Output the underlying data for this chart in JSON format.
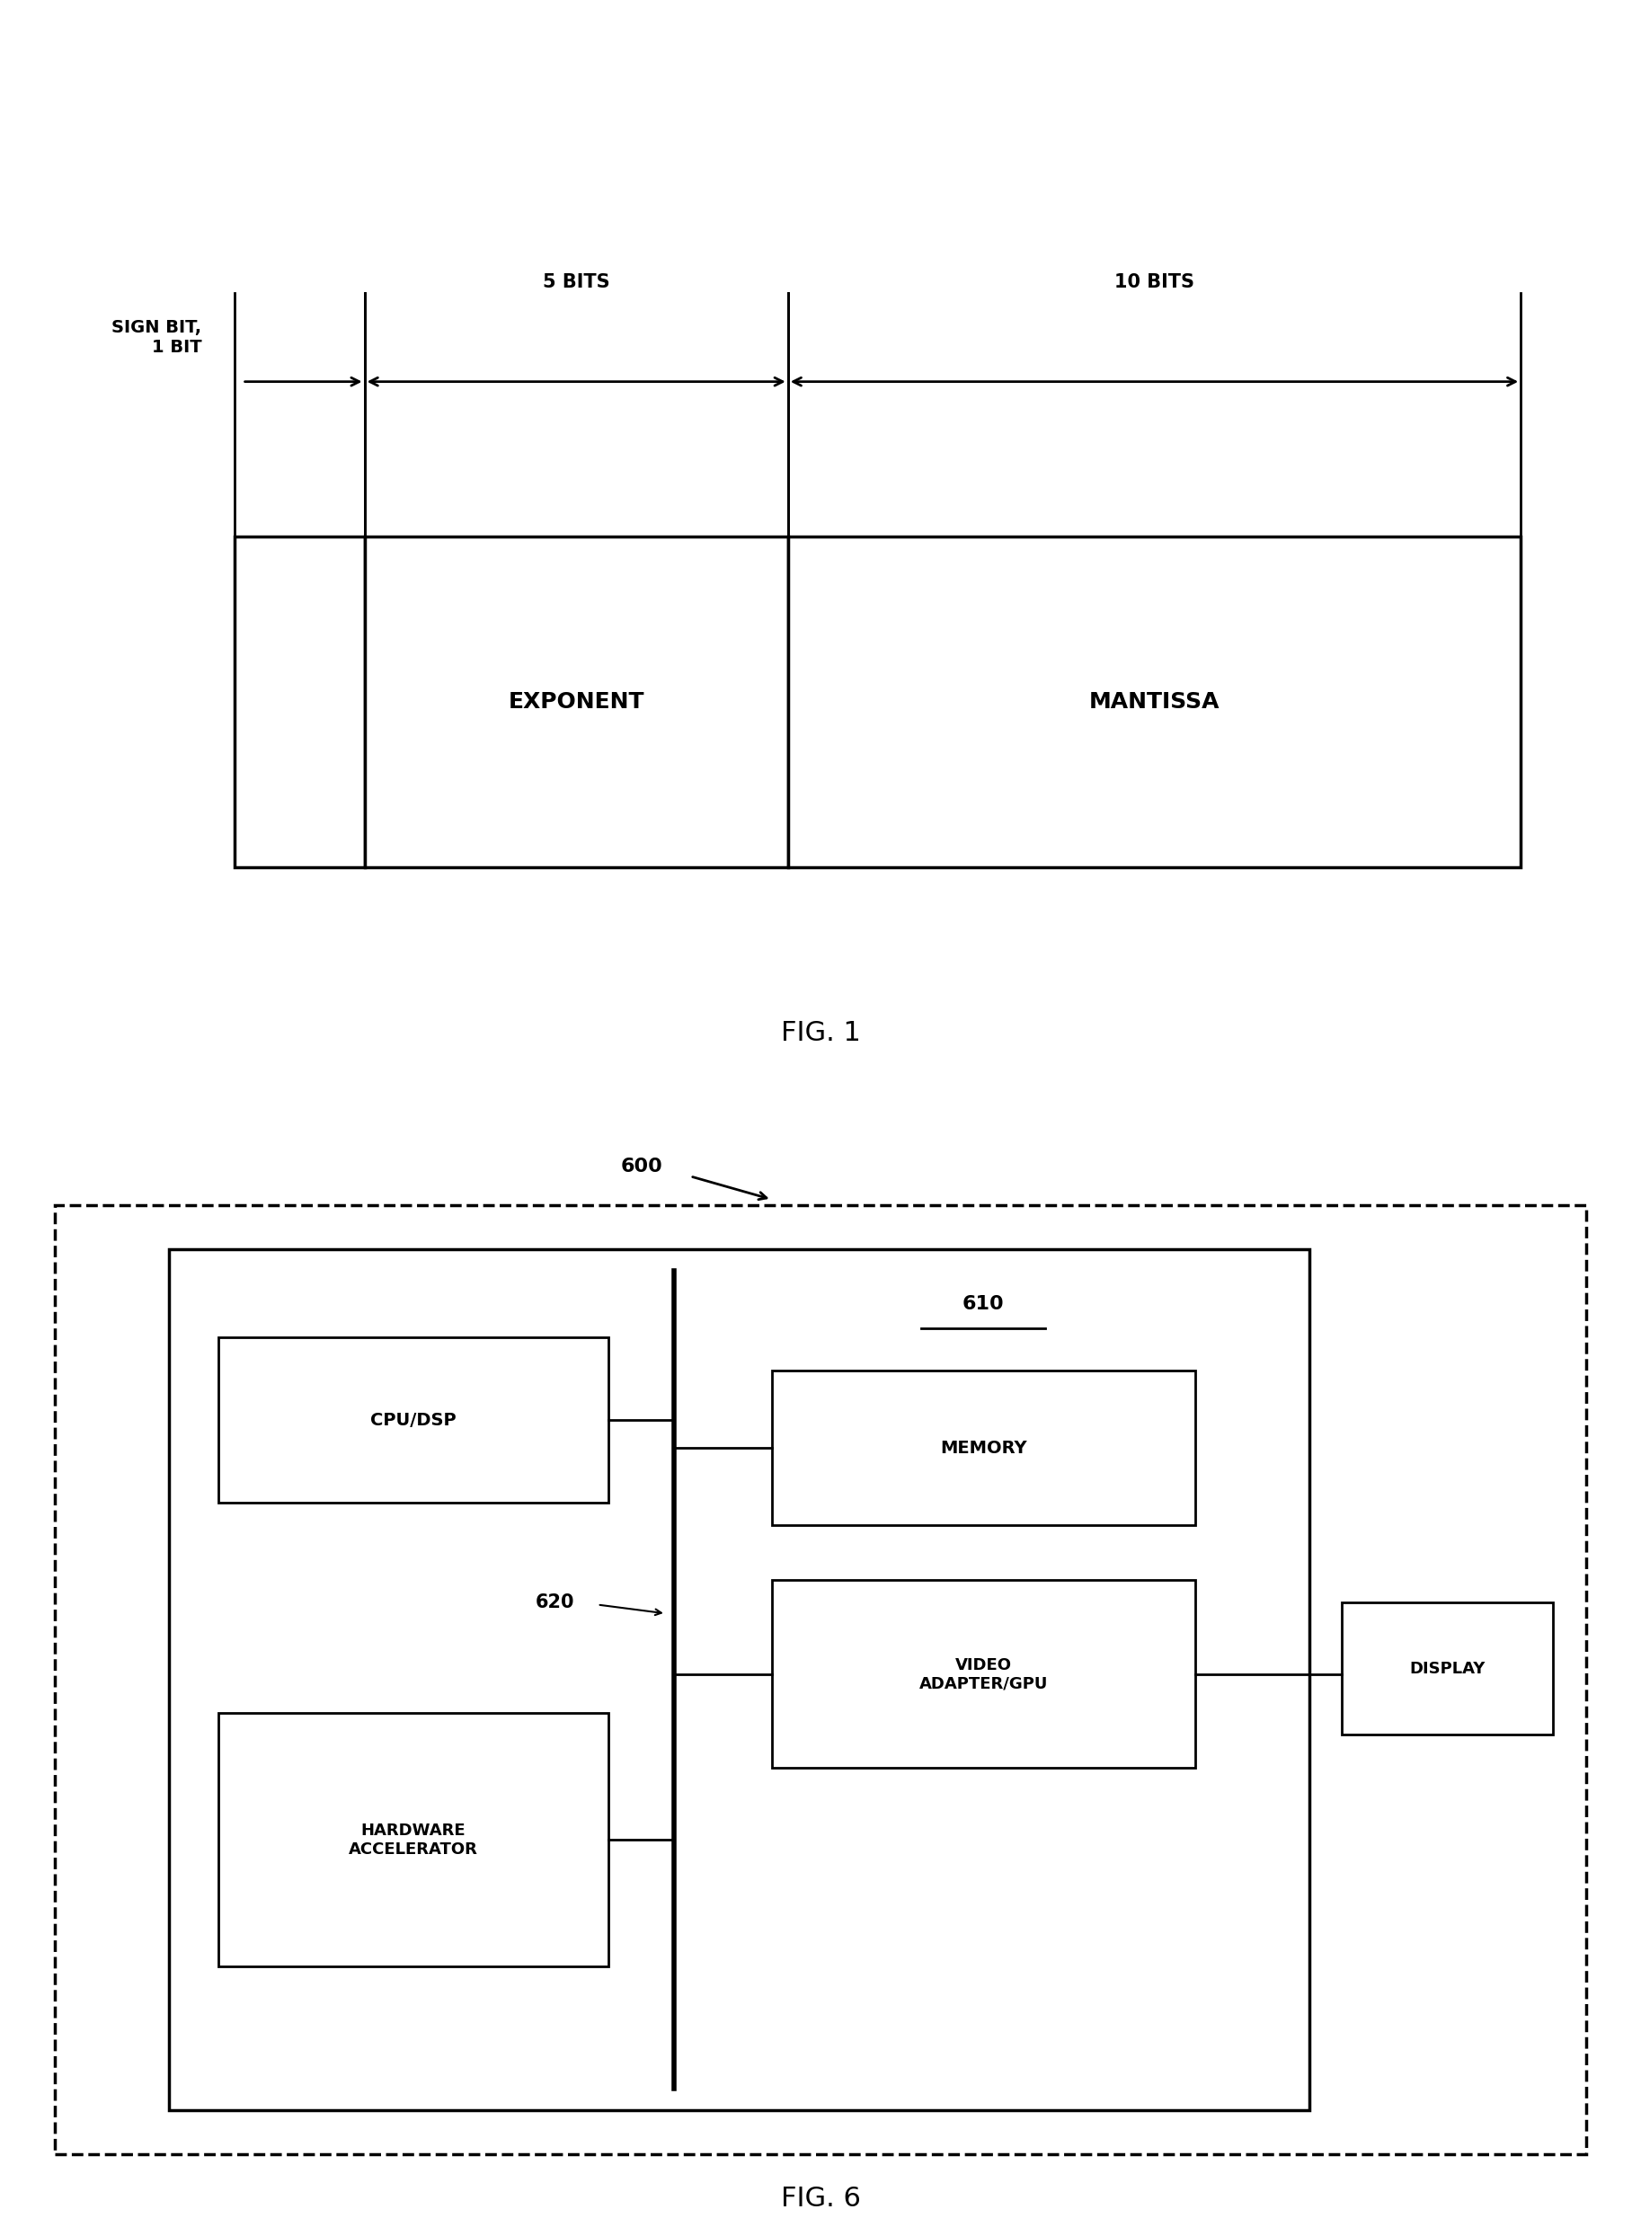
{
  "fig1": {
    "sign_bit_label": "SIGN BIT,\n1 BIT",
    "five_bits_label": "5 BITS",
    "ten_bits_label": "10 BITS",
    "exponent_label": "EXPONENT",
    "mantissa_label": "MANTISSA",
    "fig_label": "FIG. 1"
  },
  "fig6": {
    "fig_label": "FIG. 6",
    "label_600": "600",
    "label_610": "610",
    "label_620": "620",
    "cpu_label": "CPU/DSP",
    "memory_label": "MEMORY",
    "video_label": "VIDEO\nADAPTER/GPU",
    "display_label": "DISPLAY",
    "hw_label": "HARDWARE\nACCELERATOR"
  },
  "bg_color": "#ffffff",
  "line_color": "#000000"
}
